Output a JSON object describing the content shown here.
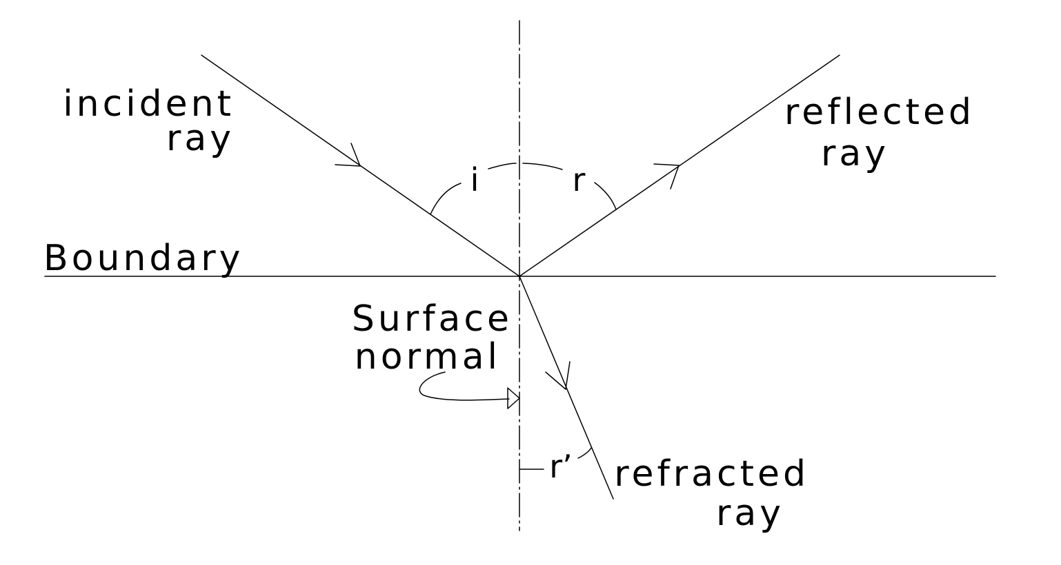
{
  "labels": {
    "incident_line1": "incident",
    "incident_line2": "ray",
    "reflected_line1": "reflected",
    "reflected_line2": "ray",
    "boundary": "Boundary",
    "normal_line1": "Surface",
    "normal_line2": "normal",
    "refracted_line1": "refracted",
    "refracted_line2": "ray",
    "angle_incidence": "i",
    "angle_reflection": "r",
    "angle_refraction": "r’"
  }
}
